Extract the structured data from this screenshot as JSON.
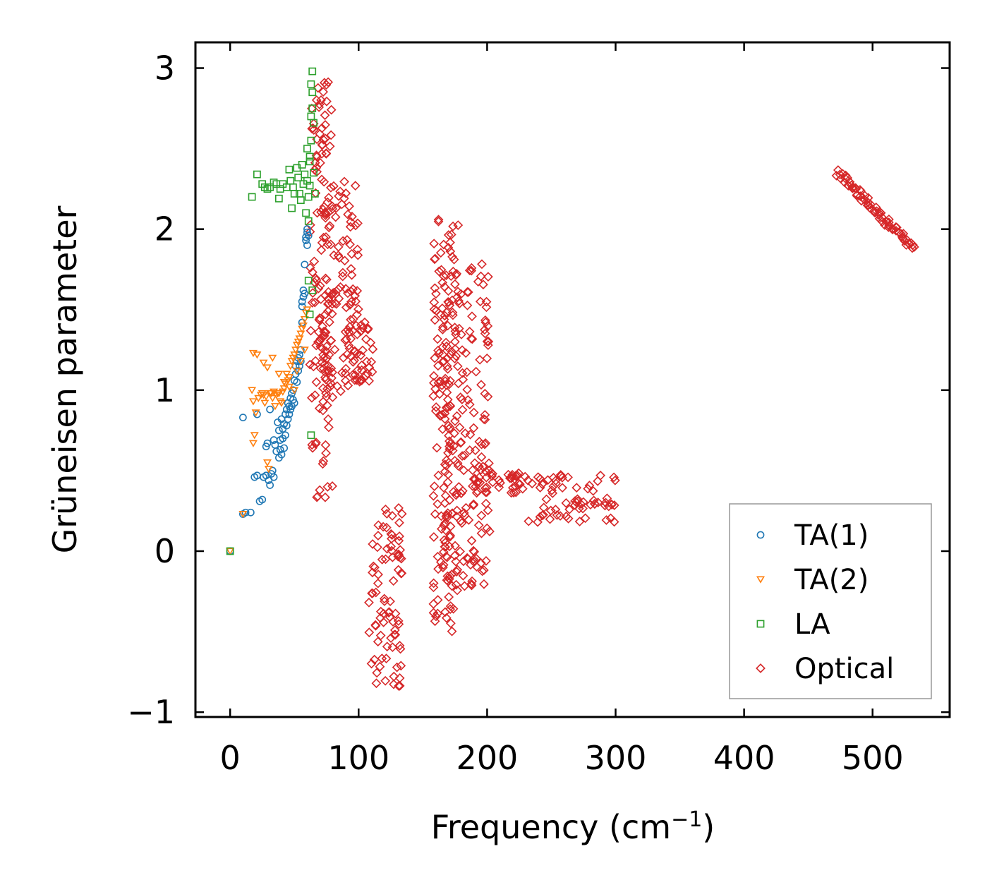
{
  "chart_data": {
    "type": "scatter",
    "title": "",
    "xlabel": "Frequency (cm",
    "xlabel_sup": "−1",
    "xlabel_end": ")",
    "ylabel": "Grüneisen parameter",
    "xlim": [
      -27,
      560
    ],
    "ylim": [
      -1.03,
      3.16
    ],
    "xticks": [
      0,
      100,
      200,
      300,
      400,
      500
    ],
    "xtick_labels": [
      "0",
      "100",
      "200",
      "300",
      "400",
      "500"
    ],
    "yticks": [
      -1,
      0,
      1,
      2,
      3
    ],
    "ytick_labels": [
      "−1",
      "0",
      "1",
      "2",
      "3"
    ],
    "grid": false,
    "legend_position": "bottom-right",
    "series": [
      {
        "name": "TA(1)",
        "marker": "circle",
        "color": "#1f77b4",
        "points": [
          [
            0,
            0
          ],
          [
            10,
            0.23
          ],
          [
            12,
            0.24
          ],
          [
            16,
            0.24
          ],
          [
            10,
            0.83
          ],
          [
            19,
            0.46
          ],
          [
            21,
            0.47
          ],
          [
            21,
            0.85
          ],
          [
            23,
            0.31
          ],
          [
            25,
            0.32
          ],
          [
            26,
            0.46
          ],
          [
            28,
            0.47
          ],
          [
            28,
            0.65
          ],
          [
            29,
            0.67
          ],
          [
            30,
            0.44
          ],
          [
            31,
            0.88
          ],
          [
            31,
            0.41
          ],
          [
            32,
            0.48
          ],
          [
            33,
            0.5
          ],
          [
            34,
            0.46
          ],
          [
            34,
            0.69
          ],
          [
            35,
            0.66
          ],
          [
            36,
            0.62
          ],
          [
            37,
            0.8
          ],
          [
            38,
            0.58
          ],
          [
            38,
            0.75
          ],
          [
            39,
            0.63
          ],
          [
            39,
            0.69
          ],
          [
            40,
            0.6
          ],
          [
            40,
            0.82
          ],
          [
            41,
            0.7
          ],
          [
            41,
            0.76
          ],
          [
            42,
            0.64
          ],
          [
            42,
            0.79
          ],
          [
            43,
            0.85
          ],
          [
            43,
            0.72
          ],
          [
            44,
            0.88
          ],
          [
            44,
            0.78
          ],
          [
            45,
            0.82
          ],
          [
            45,
            0.92
          ],
          [
            46,
            0.85
          ],
          [
            46,
            0.9
          ],
          [
            47,
            0.88
          ],
          [
            47,
            0.95
          ],
          [
            48,
            0.9
          ],
          [
            48,
            0.98
          ],
          [
            49,
            0.94
          ],
          [
            49,
            1.0
          ],
          [
            50,
            0.92
          ],
          [
            50,
            1.06
          ],
          [
            51,
            1.1
          ],
          [
            51,
            1.15
          ],
          [
            52,
            1.05
          ],
          [
            52,
            1.18
          ],
          [
            53,
            1.12
          ],
          [
            53,
            1.2
          ],
          [
            54,
            1.15
          ],
          [
            54,
            1.22
          ],
          [
            55,
            1.18
          ],
          [
            55,
            1.25
          ],
          [
            56,
            1.42
          ],
          [
            56,
            1.55
          ],
          [
            57,
            1.58
          ],
          [
            57,
            1.62
          ],
          [
            58,
            1.6
          ],
          [
            58,
            1.78
          ],
          [
            59,
            1.93
          ],
          [
            59,
            1.95
          ],
          [
            60,
            1.98
          ],
          [
            60,
            2.0
          ],
          [
            61,
            1.96
          ],
          [
            60,
            1.9
          ],
          [
            56,
            1.52
          ]
        ]
      },
      {
        "name": "TA(2)",
        "marker": "triangle-down",
        "color": "#ff7f0e",
        "points": [
          [
            0,
            0
          ],
          [
            10,
            0.23
          ],
          [
            17,
            1.0
          ],
          [
            18,
            0.93
          ],
          [
            18,
            0.67
          ],
          [
            19,
            0.72
          ],
          [
            20,
            0.86
          ],
          [
            22,
            0.95
          ],
          [
            24,
            0.97
          ],
          [
            25,
            0.98
          ],
          [
            26,
            0.97
          ],
          [
            27,
            0.92
          ],
          [
            28,
            0.96
          ],
          [
            29,
            0.55
          ],
          [
            30,
            0.51
          ],
          [
            31,
            0.98
          ],
          [
            32,
            0.98
          ],
          [
            33,
            0.95
          ],
          [
            34,
            0.99
          ],
          [
            35,
            0.9
          ],
          [
            36,
            0.97
          ],
          [
            37,
            0.98
          ],
          [
            38,
            0.98
          ],
          [
            39,
            0.93
          ],
          [
            40,
            0.92
          ],
          [
            41,
            0.99
          ],
          [
            42,
            1.01
          ],
          [
            43,
            1.04
          ],
          [
            44,
            1.1
          ],
          [
            45,
            1.06
          ],
          [
            46,
            1.08
          ],
          [
            47,
            1.15
          ],
          [
            48,
            1.18
          ],
          [
            49,
            1.2
          ],
          [
            50,
            1.22
          ],
          [
            51,
            1.25
          ],
          [
            52,
            1.28
          ],
          [
            53,
            1.3
          ],
          [
            54,
            1.32
          ],
          [
            55,
            1.35
          ],
          [
            56,
            1.38
          ],
          [
            57,
            1.4
          ],
          [
            58,
            1.44
          ],
          [
            59,
            1.48
          ],
          [
            60,
            1.5
          ],
          [
            18,
            1.23
          ],
          [
            21,
            1.22
          ],
          [
            26,
            1.17
          ],
          [
            29,
            1.14
          ],
          [
            33,
            1.2
          ],
          [
            38,
            1.1
          ],
          [
            42,
            1.05
          ],
          [
            46,
            1.02
          ],
          [
            50,
            1.0
          ],
          [
            52,
            1.12
          ],
          [
            55,
            1.18
          ],
          [
            58,
            1.25
          ]
        ]
      },
      {
        "name": "LA",
        "marker": "square",
        "color": "#2ca02c",
        "points": [
          [
            0,
            0
          ],
          [
            17,
            2.2
          ],
          [
            21,
            2.34
          ],
          [
            25,
            2.28
          ],
          [
            27,
            2.26
          ],
          [
            29,
            2.25
          ],
          [
            31,
            2.26
          ],
          [
            34,
            2.29
          ],
          [
            36,
            2.28
          ],
          [
            38,
            2.19
          ],
          [
            39,
            2.25
          ],
          [
            41,
            2.28
          ],
          [
            44,
            2.26
          ],
          [
            46,
            2.37
          ],
          [
            47,
            2.3
          ],
          [
            48,
            2.13
          ],
          [
            49,
            2.26
          ],
          [
            50,
            2.22
          ],
          [
            52,
            2.38
          ],
          [
            53,
            2.32
          ],
          [
            54,
            2.22
          ],
          [
            55,
            2.18
          ],
          [
            56,
            2.4
          ],
          [
            57,
            2.28
          ],
          [
            58,
            2.34
          ],
          [
            59,
            2.1
          ],
          [
            60,
            2.5
          ],
          [
            60,
            2.3
          ],
          [
            61,
            2.2
          ],
          [
            61,
            2.05
          ],
          [
            62,
            2.42
          ],
          [
            62,
            2.27
          ],
          [
            63,
            2.7
          ],
          [
            63,
            2.55
          ],
          [
            64,
            2.98
          ],
          [
            64,
            2.85
          ],
          [
            65,
            2.66
          ],
          [
            65,
            2.35
          ],
          [
            66,
            2.22
          ],
          [
            61,
            1.68
          ],
          [
            62,
            1.47
          ],
          [
            63,
            0.72
          ],
          [
            64,
            1.62
          ],
          [
            64,
            2.75
          ],
          [
            63,
            2.9
          ],
          [
            62,
            2.45
          ]
        ]
      },
      {
        "name": "Optical",
        "marker": "diamond",
        "color": "#d62728",
        "clusters": [
          {
            "x": [
              62,
              80
            ],
            "y": [
              0.32,
              2.92
            ]
          },
          {
            "x": [
              70,
              100
            ],
            "y": [
              0.95,
              2.32
            ]
          },
          {
            "x": [
              88,
              112
            ],
            "y": [
              1.05,
              1.45
            ]
          },
          {
            "x": [
              108,
              134
            ],
            "y": [
              -0.85,
              0.27
            ]
          },
          {
            "x": [
              158,
              178
            ],
            "y": [
              -0.5,
              2.13
            ]
          },
          {
            "x": [
              164,
              202
            ],
            "y": [
              -0.22,
              1.82
            ]
          },
          {
            "x": [
              188,
              232
            ],
            "y": [
              0.36,
              0.5
            ]
          },
          {
            "x": [
              232,
              300
            ],
            "y": [
              0.18,
              0.5
            ]
          }
        ],
        "lines": [
          {
            "x": [
              473,
              532
            ],
            "y": [
              2.35,
              1.88
            ]
          }
        ]
      }
    ]
  }
}
